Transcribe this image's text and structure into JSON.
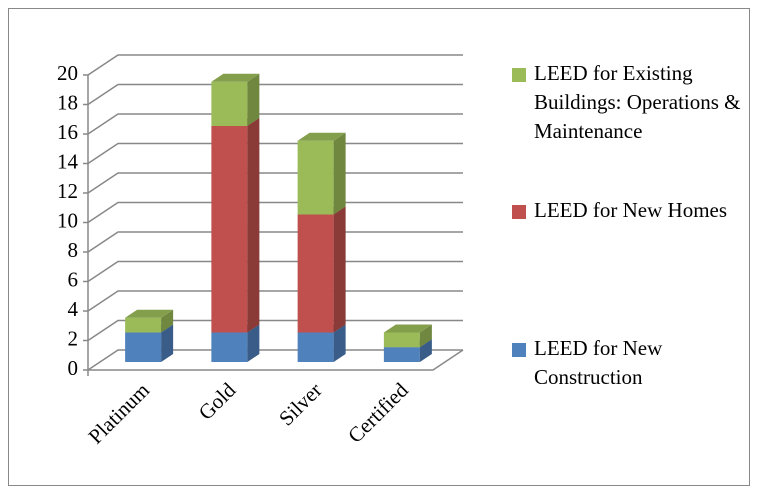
{
  "chart_data": {
    "type": "bar3d_stacked",
    "categories": [
      "Platinum",
      "Gold",
      "Silver",
      "Certified"
    ],
    "series": [
      {
        "name": "LEED for New Construction",
        "color": "#4f81bd",
        "values": [
          2,
          2,
          2,
          1
        ]
      },
      {
        "name": "LEED for New Homes",
        "color": "#c0504d",
        "values": [
          0,
          14,
          8,
          0
        ]
      },
      {
        "name": "LEED for Existing Buildings: Operations & Maintenance",
        "color": "#9bbb59",
        "values": [
          1,
          3,
          5,
          1
        ]
      }
    ],
    "ylim": [
      0,
      20
    ],
    "yticks": [
      0,
      2,
      4,
      6,
      8,
      10,
      12,
      14,
      16,
      18,
      20
    ],
    "grid": true,
    "legend": "right"
  }
}
